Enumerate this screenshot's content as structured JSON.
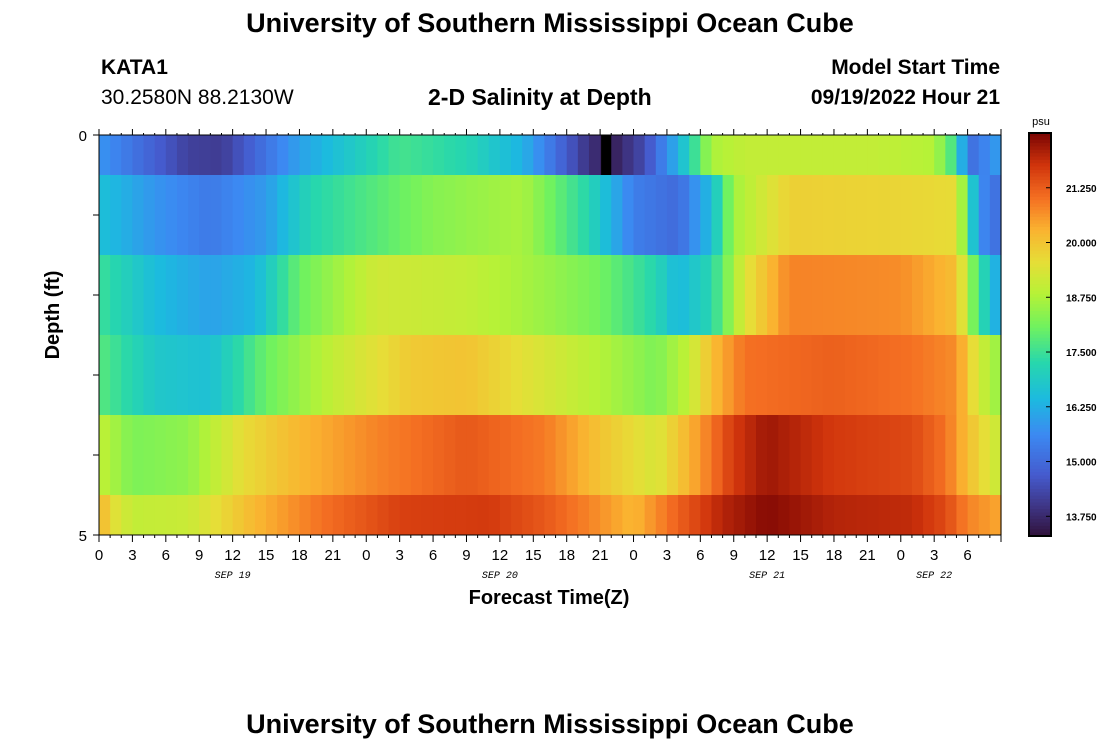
{
  "header": {
    "title": "University of Southern Mississippi Ocean Cube",
    "station_id": "KATA1",
    "station_coords": "30.2580N  88.2130W",
    "chart_title": "2-D Salinity at Depth",
    "model_start_label": "Model Start Time",
    "model_start_value": "09/19/2022 Hour 21"
  },
  "footer": {
    "title": "University of Southern Mississippi Ocean Cube"
  },
  "chart_data": {
    "type": "heatmap",
    "title": "2-D Salinity at Depth",
    "xlabel": "Forecast Time(Z)",
    "ylabel": "Depth (ft)",
    "ylim": [
      0,
      5
    ],
    "y_tick_labels": [
      "0",
      "5"
    ],
    "x_tick_labels": [
      "0",
      "3",
      "6",
      "9",
      "12",
      "15",
      "18",
      "21",
      "0",
      "3",
      "6",
      "9",
      "12",
      "15",
      "18",
      "21",
      "0",
      "3",
      "6",
      "9",
      "12",
      "15",
      "18",
      "21",
      "0",
      "3",
      "6"
    ],
    "date_labels": [
      {
        "text": "SEP 19",
        "hour_index": 12
      },
      {
        "text": "SEP 20",
        "hour_index": 36
      },
      {
        "text": "SEP 21",
        "hour_index": 60
      },
      {
        "text": "SEP 22",
        "hour_index": 75
      }
    ],
    "colorbar": {
      "unit": "psu",
      "ticks": [
        "13.750",
        "15.000",
        "16.250",
        "17.500",
        "18.750",
        "20.000",
        "21.250"
      ],
      "range": [
        13.3,
        22.5
      ]
    },
    "layers": [
      {
        "depth_range": [
          0.0,
          0.5
        ],
        "keyframes": [
          [
            0,
            15.8
          ],
          [
            8,
            14.2
          ],
          [
            11,
            14.1
          ],
          [
            18,
            16.0
          ],
          [
            27,
            17.6
          ],
          [
            33,
            17.2
          ],
          [
            38,
            16.3
          ],
          [
            44,
            13.9
          ],
          [
            46,
            13.5
          ],
          [
            49,
            14.4
          ],
          [
            52,
            16.3
          ],
          [
            55,
            18.7
          ],
          [
            58,
            19.0
          ],
          [
            70,
            19.0
          ],
          [
            75,
            18.8
          ],
          [
            77,
            17.4
          ],
          [
            78,
            15.0
          ],
          [
            81,
            16.0
          ]
        ]
      },
      {
        "depth_range": [
          0.5,
          1.5
        ],
        "keyframes": [
          [
            0,
            16.6
          ],
          [
            5,
            15.8
          ],
          [
            10,
            15.3
          ],
          [
            15,
            15.9
          ],
          [
            19,
            17.2
          ],
          [
            25,
            17.8
          ],
          [
            30,
            18.3
          ],
          [
            38,
            18.7
          ],
          [
            44,
            17.2
          ],
          [
            48,
            15.4
          ],
          [
            52,
            15.0
          ],
          [
            55,
            16.5
          ],
          [
            57,
            18.6
          ],
          [
            62,
            19.8
          ],
          [
            72,
            19.7
          ],
          [
            77,
            19.6
          ],
          [
            79,
            15.7
          ],
          [
            81,
            15.0
          ]
        ]
      },
      {
        "depth_range": [
          1.5,
          2.5
        ],
        "keyframes": [
          [
            0,
            17.5
          ],
          [
            5,
            16.5
          ],
          [
            10,
            16.0
          ],
          [
            14,
            16.4
          ],
          [
            18,
            18.0
          ],
          [
            25,
            19.2
          ],
          [
            33,
            19.0
          ],
          [
            39,
            18.6
          ],
          [
            45,
            18.1
          ],
          [
            50,
            17.2
          ],
          [
            52,
            16.4
          ],
          [
            55,
            17.2
          ],
          [
            58,
            19.4
          ],
          [
            62,
            20.8
          ],
          [
            72,
            20.7
          ],
          [
            77,
            20.1
          ],
          [
            79,
            17.5
          ],
          [
            81,
            15.9
          ]
        ]
      },
      {
        "depth_range": [
          2.5,
          3.5
        ],
        "keyframes": [
          [
            0,
            17.8
          ],
          [
            5,
            16.8
          ],
          [
            10,
            16.6
          ],
          [
            15,
            18.0
          ],
          [
            21,
            19.0
          ],
          [
            28,
            19.9
          ],
          [
            33,
            20.0
          ],
          [
            40,
            19.3
          ],
          [
            45,
            18.8
          ],
          [
            50,
            18.2
          ],
          [
            53,
            19.0
          ],
          [
            55,
            20.1
          ],
          [
            58,
            21.0
          ],
          [
            66,
            21.2
          ],
          [
            73,
            21.0
          ],
          [
            77,
            20.7
          ],
          [
            79,
            19.2
          ],
          [
            81,
            18.4
          ]
        ]
      },
      {
        "depth_range": [
          3.5,
          4.5
        ],
        "keyframes": [
          [
            0,
            19.0
          ],
          [
            3,
            18.2
          ],
          [
            8,
            18.4
          ],
          [
            13,
            19.6
          ],
          [
            18,
            20.2
          ],
          [
            25,
            20.8
          ],
          [
            33,
            21.3
          ],
          [
            40,
            20.9
          ],
          [
            45,
            20.0
          ],
          [
            50,
            19.3
          ],
          [
            54,
            20.6
          ],
          [
            57,
            21.7
          ],
          [
            60,
            22.2
          ],
          [
            66,
            21.7
          ],
          [
            73,
            21.5
          ],
          [
            76,
            21.0
          ],
          [
            78,
            20.1
          ],
          [
            81,
            19.0
          ]
        ]
      },
      {
        "depth_range": [
          4.5,
          5.0
        ],
        "keyframes": [
          [
            0,
            20.4
          ],
          [
            1,
            19.6
          ],
          [
            3,
            19.0
          ],
          [
            8,
            19.1
          ],
          [
            14,
            20.2
          ],
          [
            20,
            21.0
          ],
          [
            27,
            21.6
          ],
          [
            35,
            21.7
          ],
          [
            40,
            21.3
          ],
          [
            44,
            20.8
          ],
          [
            48,
            20.2
          ],
          [
            52,
            21.2
          ],
          [
            56,
            22.0
          ],
          [
            60,
            22.4
          ],
          [
            66,
            22.0
          ],
          [
            73,
            21.9
          ],
          [
            76,
            21.5
          ],
          [
            78,
            20.8
          ],
          [
            81,
            20.4
          ]
        ]
      }
    ],
    "hours_total": 81,
    "gap_mark_hour_index": 45,
    "colors": {
      "grid_black": "#000000",
      "gap_mark": "#000000"
    }
  }
}
